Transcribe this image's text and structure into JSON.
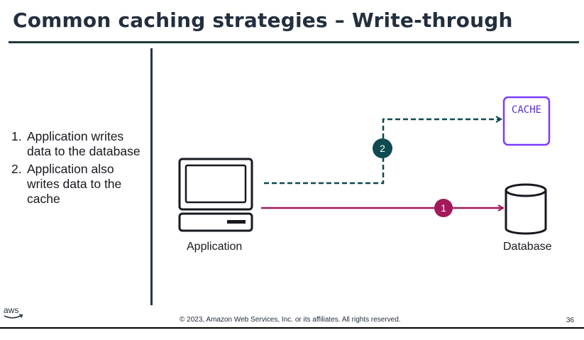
{
  "title": "Common caching strategies – Write-through",
  "steps": [
    {
      "number": "1.",
      "text": "Application writes data to the database"
    },
    {
      "number": "2.",
      "text": "Application also writes data to the cache"
    }
  ],
  "diagram": {
    "application_label": "Application",
    "database_label": "Database",
    "cache_label": "CACHE",
    "badge_1": "1",
    "badge_2": "2"
  },
  "colors": {
    "title": "#232f3e",
    "rule": "#1f3b3f",
    "write_to_database": "#a3195b",
    "write_to_cache": "#0f4a4f",
    "cache_box": "#7a3cff"
  },
  "footer": {
    "logo": "aws",
    "copyright": "© 2023, Amazon Web Services, Inc. or its affiliates. All rights reserved.",
    "page_number": "36"
  }
}
